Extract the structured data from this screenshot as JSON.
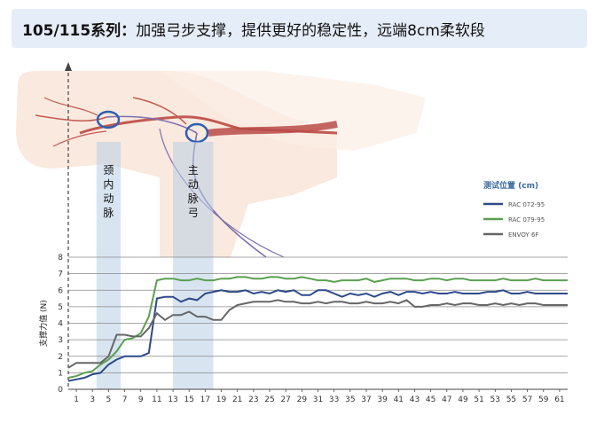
{
  "header": {
    "bold": "105/115系列：",
    "text": "加强弓步支撑，提供更好的稳定性，远端8cm柔软段"
  },
  "chart_data": {
    "type": "line",
    "title": "",
    "xlabel": "",
    "ylabel": "支撑力值 (N)",
    "ylim": [
      0,
      8
    ],
    "xlim": [
      0,
      62
    ],
    "x_ticks": [
      1,
      3,
      5,
      7,
      9,
      11,
      13,
      15,
      17,
      19,
      21,
      23,
      25,
      27,
      29,
      31,
      33,
      35,
      37,
      39,
      41,
      43,
      45,
      47,
      49,
      51,
      53,
      55,
      57,
      59,
      61
    ],
    "y_ticks": [
      0,
      1,
      2,
      3,
      4,
      5,
      6,
      7,
      8
    ],
    "grid": "horizontal",
    "legend": {
      "title": "测试位置 (cm)",
      "placement": "right"
    },
    "regions": [
      {
        "label": "颈内动脉",
        "x0": 3.5,
        "x1": 6.5,
        "color": "#b8cfe6"
      },
      {
        "label": "主动脉弓",
        "x0": 13,
        "x1": 18,
        "color": "#b8cfe6"
      }
    ],
    "series": [
      {
        "name": "RAC 072-95",
        "color": "#2d4a8a",
        "x": [
          0,
          1,
          2,
          3,
          4,
          5,
          6,
          7,
          8,
          9,
          10,
          11,
          12,
          13,
          14,
          15,
          16,
          17,
          18,
          19,
          20,
          21,
          22,
          23,
          24,
          25,
          26,
          27,
          28,
          29,
          30,
          31,
          32,
          33,
          34,
          35,
          36,
          37,
          38,
          39,
          40,
          41,
          42,
          43,
          44,
          45,
          46,
          47,
          48,
          49,
          50,
          51,
          52,
          53,
          54,
          55,
          56,
          57,
          58,
          59,
          60,
          61,
          62
        ],
        "y": [
          0.5,
          0.6,
          0.7,
          0.9,
          1.0,
          1.5,
          1.8,
          2.0,
          2.0,
          2.0,
          2.2,
          5.5,
          5.6,
          5.6,
          5.3,
          5.5,
          5.4,
          5.8,
          5.9,
          6.0,
          5.9,
          5.9,
          6.0,
          5.8,
          5.9,
          5.8,
          6.0,
          5.9,
          6.0,
          5.7,
          5.7,
          6.0,
          6.0,
          5.8,
          5.6,
          5.8,
          5.7,
          5.8,
          5.6,
          5.8,
          5.9,
          5.7,
          5.9,
          5.9,
          5.8,
          5.9,
          5.8,
          5.8,
          5.9,
          5.8,
          5.8,
          5.8,
          5.9,
          5.9,
          6.0,
          5.8,
          5.8,
          5.9,
          5.8,
          5.8,
          5.8,
          5.8,
          5.8
        ]
      },
      {
        "name": "RAC 079-95",
        "color": "#5aa050",
        "x": [
          0,
          1,
          2,
          3,
          4,
          5,
          6,
          7,
          8,
          9,
          10,
          11,
          12,
          13,
          14,
          15,
          16,
          17,
          18,
          19,
          20,
          21,
          22,
          23,
          24,
          25,
          26,
          27,
          28,
          29,
          30,
          31,
          32,
          33,
          34,
          35,
          36,
          37,
          38,
          39,
          40,
          41,
          42,
          43,
          44,
          45,
          46,
          47,
          48,
          49,
          50,
          51,
          52,
          53,
          54,
          55,
          56,
          57,
          58,
          59,
          60,
          61,
          62
        ],
        "y": [
          0.7,
          0.8,
          1.0,
          1.1,
          1.5,
          1.8,
          2.3,
          3.0,
          3.1,
          3.4,
          4.4,
          6.6,
          6.7,
          6.7,
          6.6,
          6.6,
          6.7,
          6.6,
          6.6,
          6.7,
          6.7,
          6.8,
          6.8,
          6.7,
          6.7,
          6.8,
          6.8,
          6.7,
          6.7,
          6.8,
          6.7,
          6.6,
          6.6,
          6.5,
          6.6,
          6.6,
          6.6,
          6.7,
          6.5,
          6.6,
          6.7,
          6.7,
          6.7,
          6.6,
          6.6,
          6.7,
          6.7,
          6.6,
          6.7,
          6.7,
          6.6,
          6.6,
          6.6,
          6.6,
          6.7,
          6.6,
          6.6,
          6.6,
          6.7,
          6.6,
          6.6,
          6.6,
          6.6
        ]
      },
      {
        "name": "ENVOY 6F",
        "color": "#666666",
        "x": [
          0,
          1,
          2,
          3,
          4,
          5,
          6,
          7,
          8,
          9,
          10,
          11,
          12,
          13,
          14,
          15,
          16,
          17,
          18,
          19,
          20,
          21,
          22,
          23,
          24,
          25,
          26,
          27,
          28,
          29,
          30,
          31,
          32,
          33,
          34,
          35,
          36,
          37,
          38,
          39,
          40,
          41,
          42,
          43,
          44,
          45,
          46,
          47,
          48,
          49,
          50,
          51,
          52,
          53,
          54,
          55,
          56,
          57,
          58,
          59,
          60,
          61,
          62
        ],
        "y": [
          1.3,
          1.6,
          1.6,
          1.6,
          1.6,
          2.0,
          3.3,
          3.3,
          3.2,
          3.2,
          3.7,
          4.6,
          4.2,
          4.5,
          4.5,
          4.7,
          4.4,
          4.4,
          4.2,
          4.2,
          4.8,
          5.1,
          5.2,
          5.3,
          5.3,
          5.3,
          5.4,
          5.3,
          5.3,
          5.2,
          5.2,
          5.3,
          5.2,
          5.3,
          5.3,
          5.2,
          5.2,
          5.3,
          5.2,
          5.2,
          5.3,
          5.2,
          5.4,
          5.0,
          5.0,
          5.1,
          5.1,
          5.2,
          5.1,
          5.2,
          5.2,
          5.1,
          5.1,
          5.2,
          5.1,
          5.2,
          5.1,
          5.2,
          5.2,
          5.1,
          5.1,
          5.1,
          5.1
        ]
      }
    ]
  }
}
